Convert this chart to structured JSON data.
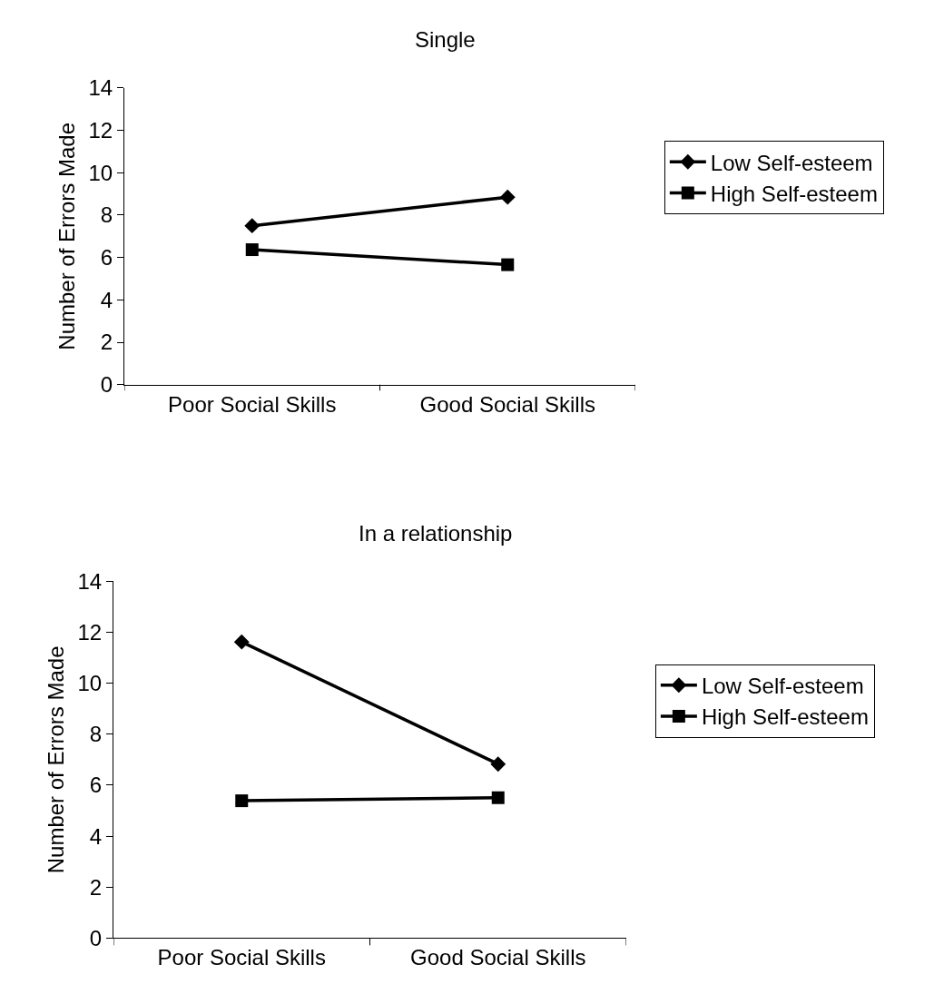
{
  "chart_data": [
    {
      "type": "line",
      "title": "Single",
      "ylabel": "Number of Errors Made",
      "categories": [
        "Poor Social Skills",
        "Good Social Skills"
      ],
      "ylim": [
        0,
        14
      ],
      "yticks": [
        0,
        2,
        4,
        6,
        8,
        10,
        12,
        14
      ],
      "legend": "right",
      "series": [
        {
          "name": "Low Self-esteem",
          "color": "#000000",
          "marker": "diamond",
          "values": [
            7.5,
            8.85
          ]
        },
        {
          "name": "High Self-esteem",
          "color": "#000000",
          "marker": "square",
          "values": [
            6.37,
            5.66
          ]
        }
      ]
    },
    {
      "type": "line",
      "title": "In a relationship",
      "ylabel": "Number of Errors Made",
      "categories": [
        "Poor Social Skills",
        "Good Social Skills"
      ],
      "ylim": [
        0,
        14
      ],
      "yticks": [
        0,
        2,
        4,
        6,
        8,
        10,
        12,
        14
      ],
      "legend": "right",
      "series": [
        {
          "name": "Low Self-esteem",
          "color": "#000000",
          "marker": "diamond",
          "values": [
            11.62,
            6.83
          ]
        },
        {
          "name": "High Self-esteem",
          "color": "#000000",
          "marker": "square",
          "values": [
            5.39,
            5.51
          ]
        }
      ]
    }
  ]
}
